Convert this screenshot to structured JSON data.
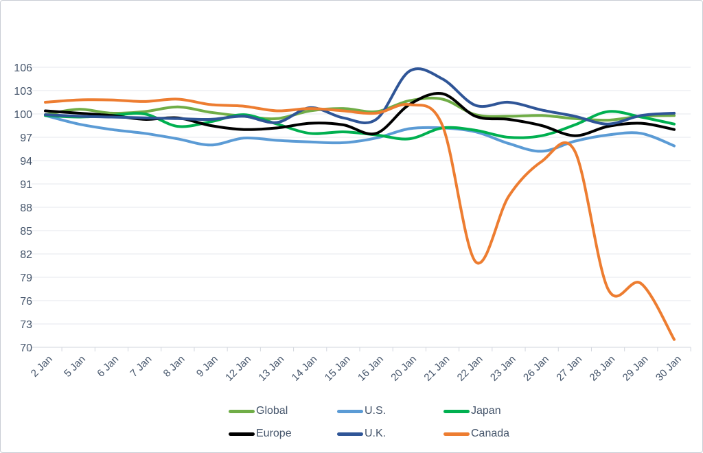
{
  "chart_data": {
    "type": "line",
    "title": "",
    "smooth": true,
    "grid": "horizontal",
    "legend_position": "bottom",
    "categories": [
      "2 Jan",
      "5 Jan",
      "6 Jan",
      "7 Jan",
      "8 Jan",
      "9 Jan",
      "12 Jan",
      "13 Jan",
      "14 Jan",
      "15 Jan",
      "16 Jan",
      "20 Jan",
      "21 Jan",
      "22 Jan",
      "23 Jan",
      "26 Jan",
      "27 Jan",
      "28 Jan",
      "29 Jan",
      "30 Jan"
    ],
    "ylim": [
      70,
      106
    ],
    "y_ticks": [
      70,
      73,
      76,
      79,
      82,
      85,
      88,
      91,
      94,
      97,
      100,
      103,
      106
    ],
    "series": [
      {
        "name": "Global",
        "color": "#70AD47",
        "values": [
          99.9,
          100.6,
          100.1,
          100.3,
          100.9,
          100.2,
          99.7,
          99.4,
          100.4,
          100.7,
          100.3,
          101.7,
          101.9,
          99.9,
          99.7,
          99.8,
          99.4,
          99.2,
          99.7,
          99.8
        ]
      },
      {
        "name": "U.S.",
        "color": "#5B9BD5",
        "values": [
          99.8,
          98.7,
          98.0,
          97.5,
          96.8,
          96.0,
          96.9,
          96.6,
          96.4,
          96.3,
          96.9,
          98.1,
          98.2,
          97.7,
          96.2,
          95.2,
          96.5,
          97.3,
          97.5,
          95.9
        ]
      },
      {
        "name": "Japan",
        "color": "#00B050",
        "values": [
          99.8,
          99.6,
          99.8,
          100.0,
          98.4,
          99.0,
          99.9,
          98.7,
          97.5,
          97.7,
          97.3,
          96.8,
          98.2,
          97.9,
          97.0,
          97.2,
          98.6,
          100.3,
          99.6,
          98.7
        ]
      },
      {
        "name": "Europe",
        "color": "#000000",
        "values": [
          100.4,
          100.1,
          99.8,
          99.3,
          99.5,
          98.5,
          98.0,
          98.2,
          98.8,
          98.6,
          97.5,
          101.2,
          102.6,
          99.7,
          99.3,
          98.5,
          97.2,
          98.4,
          98.8,
          98.0
        ]
      },
      {
        "name": "U.K.",
        "color": "#2F5597",
        "values": [
          99.9,
          99.7,
          99.6,
          99.5,
          99.4,
          99.3,
          99.7,
          98.9,
          100.8,
          99.5,
          99.3,
          105.5,
          104.5,
          101.1,
          101.5,
          100.5,
          99.7,
          98.7,
          99.8,
          100.1
        ]
      },
      {
        "name": "Canada",
        "color": "#ED7D31",
        "values": [
          101.5,
          101.8,
          101.8,
          101.6,
          101.9,
          101.2,
          101.0,
          100.4,
          100.7,
          100.4,
          100.1,
          101.2,
          98.5,
          81.0,
          89.4,
          93.9,
          95.2,
          77.5,
          78.2,
          71.0
        ]
      }
    ]
  },
  "colors": {
    "background": "#FFFFFF",
    "frame_border": "#C9CDD4",
    "gridline": "#E4E7EE",
    "axis_line": "#D2D6DE",
    "tick_label": "#44546A"
  }
}
